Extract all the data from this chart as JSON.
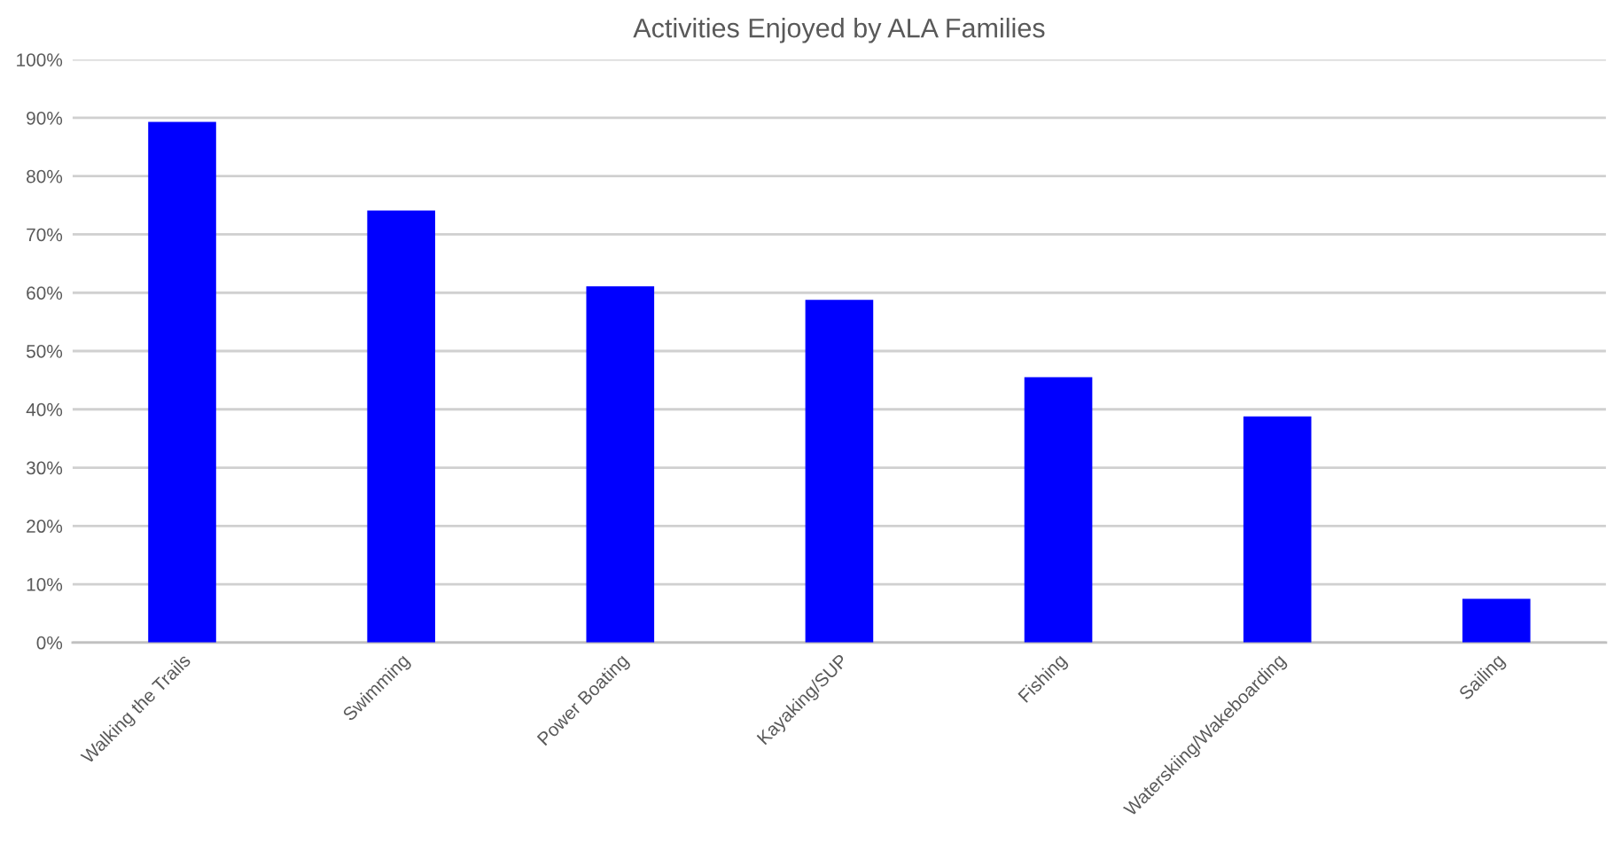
{
  "chart_data": {
    "type": "bar",
    "title": "Activities Enjoyed by ALA Families",
    "categories": [
      "Walking the Trails",
      "Swimming",
      "Power Boating",
      "Kayaking/SUP",
      "Fishing",
      "Waterskiing/Wakeboarding",
      "Sailing"
    ],
    "values": [
      89.3,
      74.1,
      61.1,
      58.8,
      45.5,
      38.8,
      7.5
    ],
    "color": "#0000ff",
    "ylim": [
      0,
      100
    ],
    "yticks": [
      {
        "value": 0,
        "label": "0%"
      },
      {
        "value": 10,
        "label": "10%"
      },
      {
        "value": 20,
        "label": "20%"
      },
      {
        "value": 30,
        "label": "30%"
      },
      {
        "value": 40,
        "label": "40%"
      },
      {
        "value": 50,
        "label": "50%"
      },
      {
        "value": 60,
        "label": "60%"
      },
      {
        "value": 70,
        "label": "70%"
      },
      {
        "value": 80,
        "label": "80%"
      },
      {
        "value": 90,
        "label": "90%"
      },
      {
        "value": 100,
        "label": "100%"
      }
    ],
    "grid": "y",
    "legend": false
  }
}
